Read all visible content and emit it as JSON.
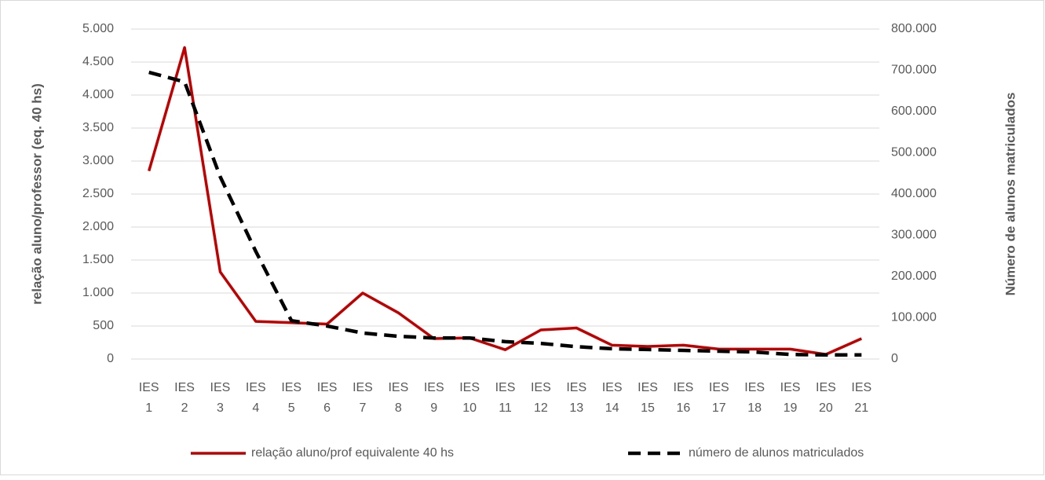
{
  "chart_data": {
    "type": "line",
    "categories": [
      "IES 1",
      "IES 2",
      "IES 3",
      "IES 4",
      "IES 5",
      "IES 6",
      "IES 7",
      "IES 8",
      "IES 9",
      "IES 10",
      "IES 11",
      "IES 12",
      "IES 13",
      "IES 14",
      "IES 15",
      "IES 16",
      "IES 17",
      "IES 18",
      "IES 19",
      "IES 20",
      "IES 21"
    ],
    "series": [
      {
        "name": "relação aluno/prof equivalente 40 hs",
        "color": "#c00000",
        "values": [
          2850,
          4720,
          1320,
          570,
          550,
          530,
          1000,
          700,
          310,
          320,
          140,
          440,
          470,
          210,
          190,
          210,
          150,
          150,
          150,
          70,
          310
        ]
      },
      {
        "name": "número de alunos matriculados",
        "color": "#000000",
        "axis": "y2",
        "dashed": true,
        "values": [
          695000,
          672000,
          442000,
          261000,
          93000,
          80000,
          63000,
          55000,
          51000,
          51000,
          42000,
          38000,
          30000,
          25000,
          23000,
          21000,
          19000,
          17000,
          11000,
          10000,
          10000
        ]
      }
    ],
    "ylabel": "relação aluno/professor (eq. 40 hs)",
    "y2label": "Número de alunos matriculados",
    "ylim": [
      0,
      5000
    ],
    "yticks": [
      0,
      {
        "value": 500,
        "label": "500"
      },
      {
        "value": 1000,
        "label": "1.000"
      },
      {
        "value": 1500,
        "label": "1.500"
      },
      {
        "value": 2000,
        "label": "2.000"
      },
      {
        "value": 2500,
        "label": "2.500"
      },
      {
        "value": 3000,
        "label": "3.000"
      },
      {
        "value": 3500,
        "label": "3.500"
      },
      {
        "value": 4000,
        "label": "4.000"
      },
      {
        "value": 4500,
        "label": "4.500"
      },
      {
        "value": 5000,
        "label": "5.000"
      }
    ],
    "y2lim": [
      0,
      800000
    ],
    "y2ticks": [
      0,
      {
        "value": 100000,
        "label": "100.000"
      },
      {
        "value": 200000,
        "label": "200.000"
      },
      {
        "value": 300000,
        "label": "300.000"
      },
      {
        "value": 400000,
        "label": "400.000"
      },
      {
        "value": 500000,
        "label": "500.000"
      },
      {
        "value": 600000,
        "label": "600.000"
      },
      {
        "value": 700000,
        "label": "700.000"
      },
      {
        "value": 800000,
        "label": "800.000"
      }
    ],
    "grid": true,
    "legend": "bottom"
  }
}
